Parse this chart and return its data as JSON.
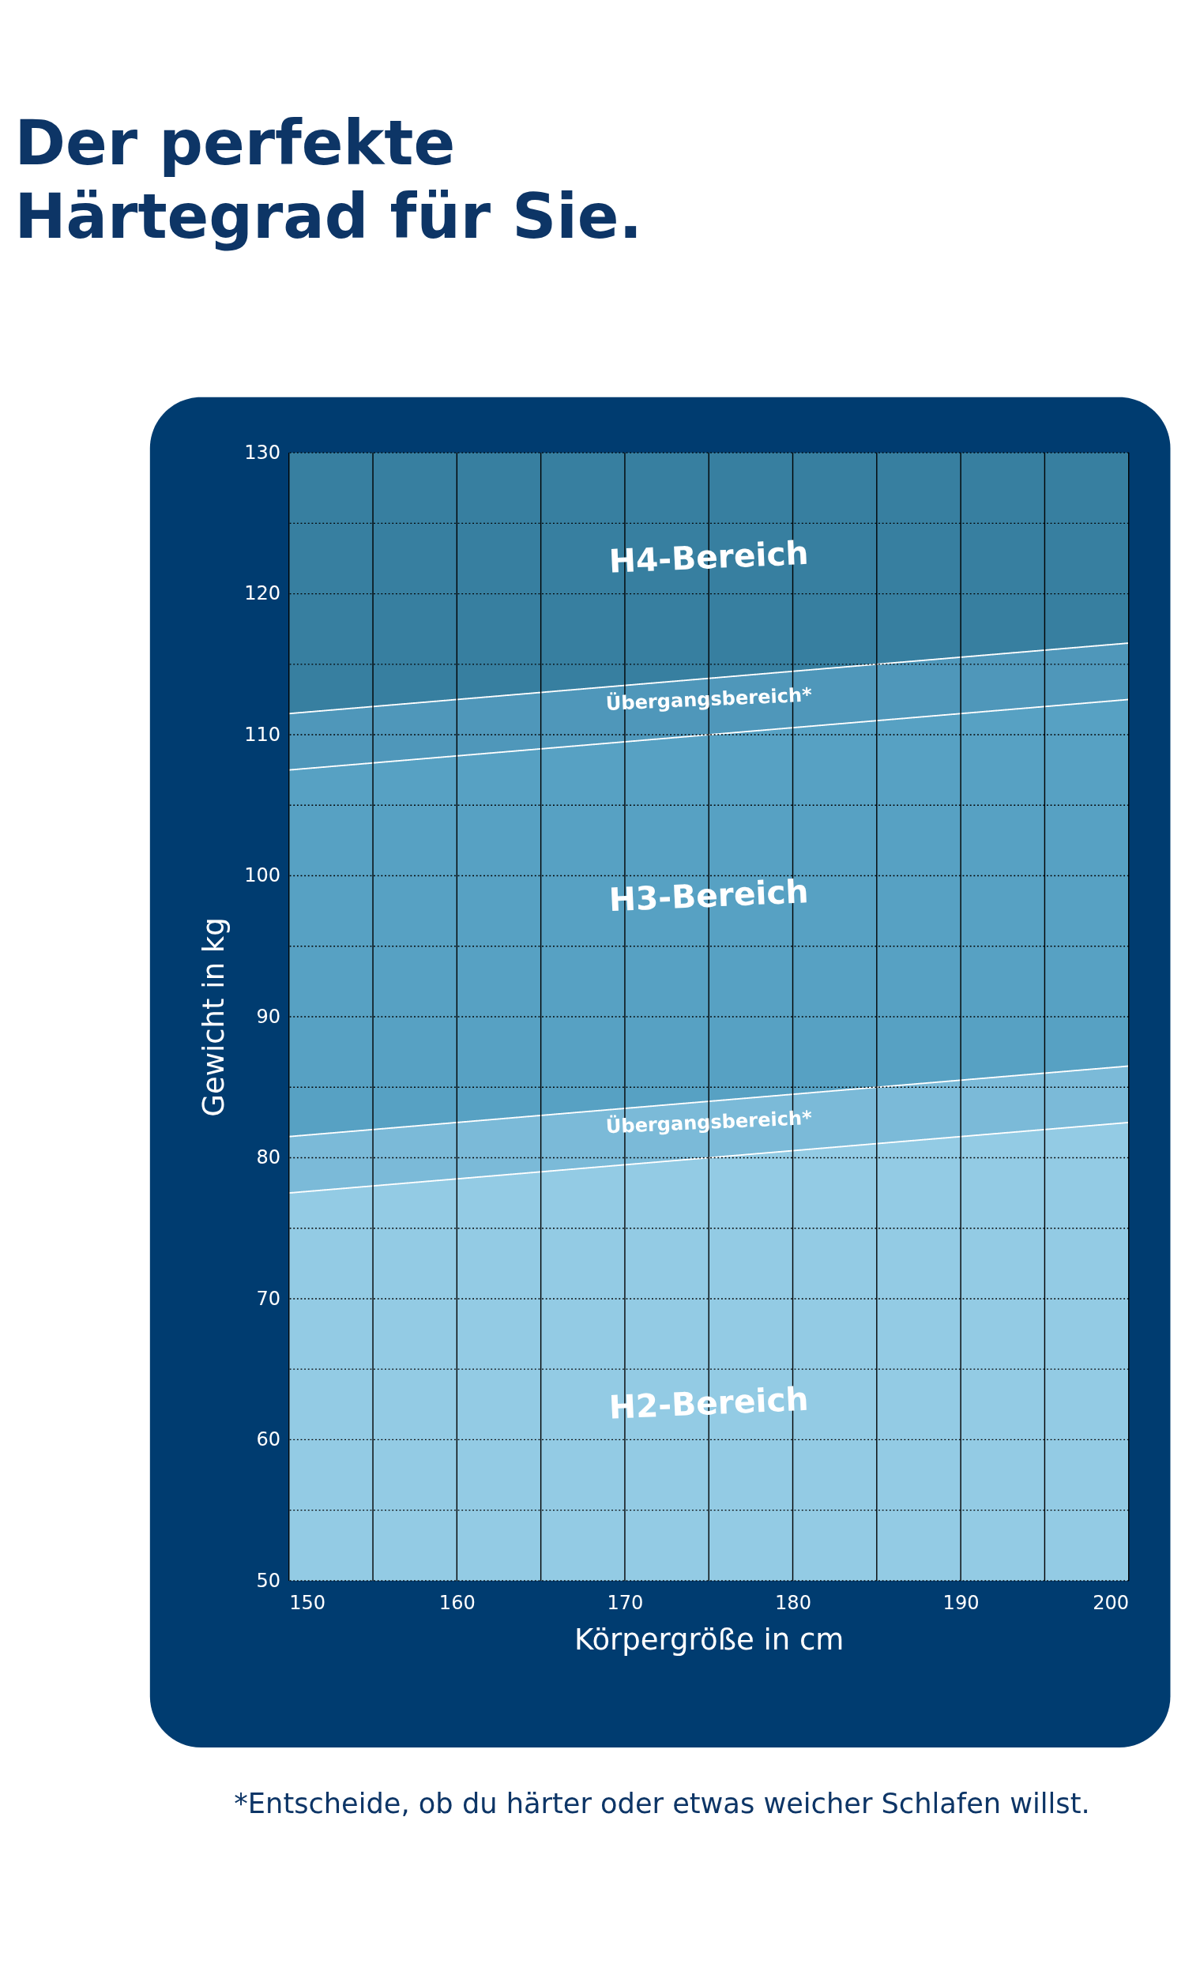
{
  "chart_data": {
    "type": "area",
    "title": "Der perfekte Härtegrad für Sie.",
    "xlabel": "Körpergröße in cm",
    "ylabel": "Gewicht in kg",
    "x": [
      150,
      200
    ],
    "series": [
      {
        "type": "area",
        "color": "#377fa0",
        "values": [
          130,
          130
        ]
      },
      {
        "type": "area",
        "color": "#4f97ba",
        "values": [
          111.5,
          116.5
        ],
        "line_style": "solid"
      },
      {
        "type": "area",
        "color": "#57a1c3",
        "values": [
          107.5,
          112.5
        ],
        "line_style": "solid"
      },
      {
        "type": "area",
        "color": "#7bbad8",
        "values": [
          81.5,
          86.5
        ],
        "line_style": "solid"
      },
      {
        "type": "area",
        "color": "#93cbe4",
        "values": [
          77.5,
          82.5
        ],
        "line_style": "solid"
      }
    ],
    "xlim": [
      150,
      200
    ],
    "ylim": [
      50,
      130
    ],
    "xticks": [
      150,
      {
        "value": 155,
        "label": null
      },
      160,
      {
        "value": 165,
        "label": null
      },
      170,
      {
        "value": 175,
        "label": null
      },
      180,
      {
        "value": 185,
        "label": null
      },
      190,
      {
        "value": 195,
        "label": null
      },
      200
    ],
    "yticks": [
      50,
      {
        "value": 55,
        "label": null
      },
      60,
      {
        "value": 65,
        "label": null
      },
      70,
      {
        "value": 75,
        "label": null
      },
      80,
      {
        "value": 85,
        "label": null
      },
      90,
      {
        "value": 95,
        "label": null
      },
      100,
      {
        "value": 105,
        "label": null
      },
      110,
      {
        "value": 115,
        "label": null
      },
      120,
      {
        "value": 125,
        "label": null
      },
      130
    ],
    "grid": true,
    "annotations": [
      "H4-Bereich",
      "Übergangsbereich*",
      "H3-Bereich",
      "Übergangsbereich*",
      "H2-Bereich",
      "*Entscheide, ob du härter oder etwas weicher Schlafen willst."
    ]
  }
}
